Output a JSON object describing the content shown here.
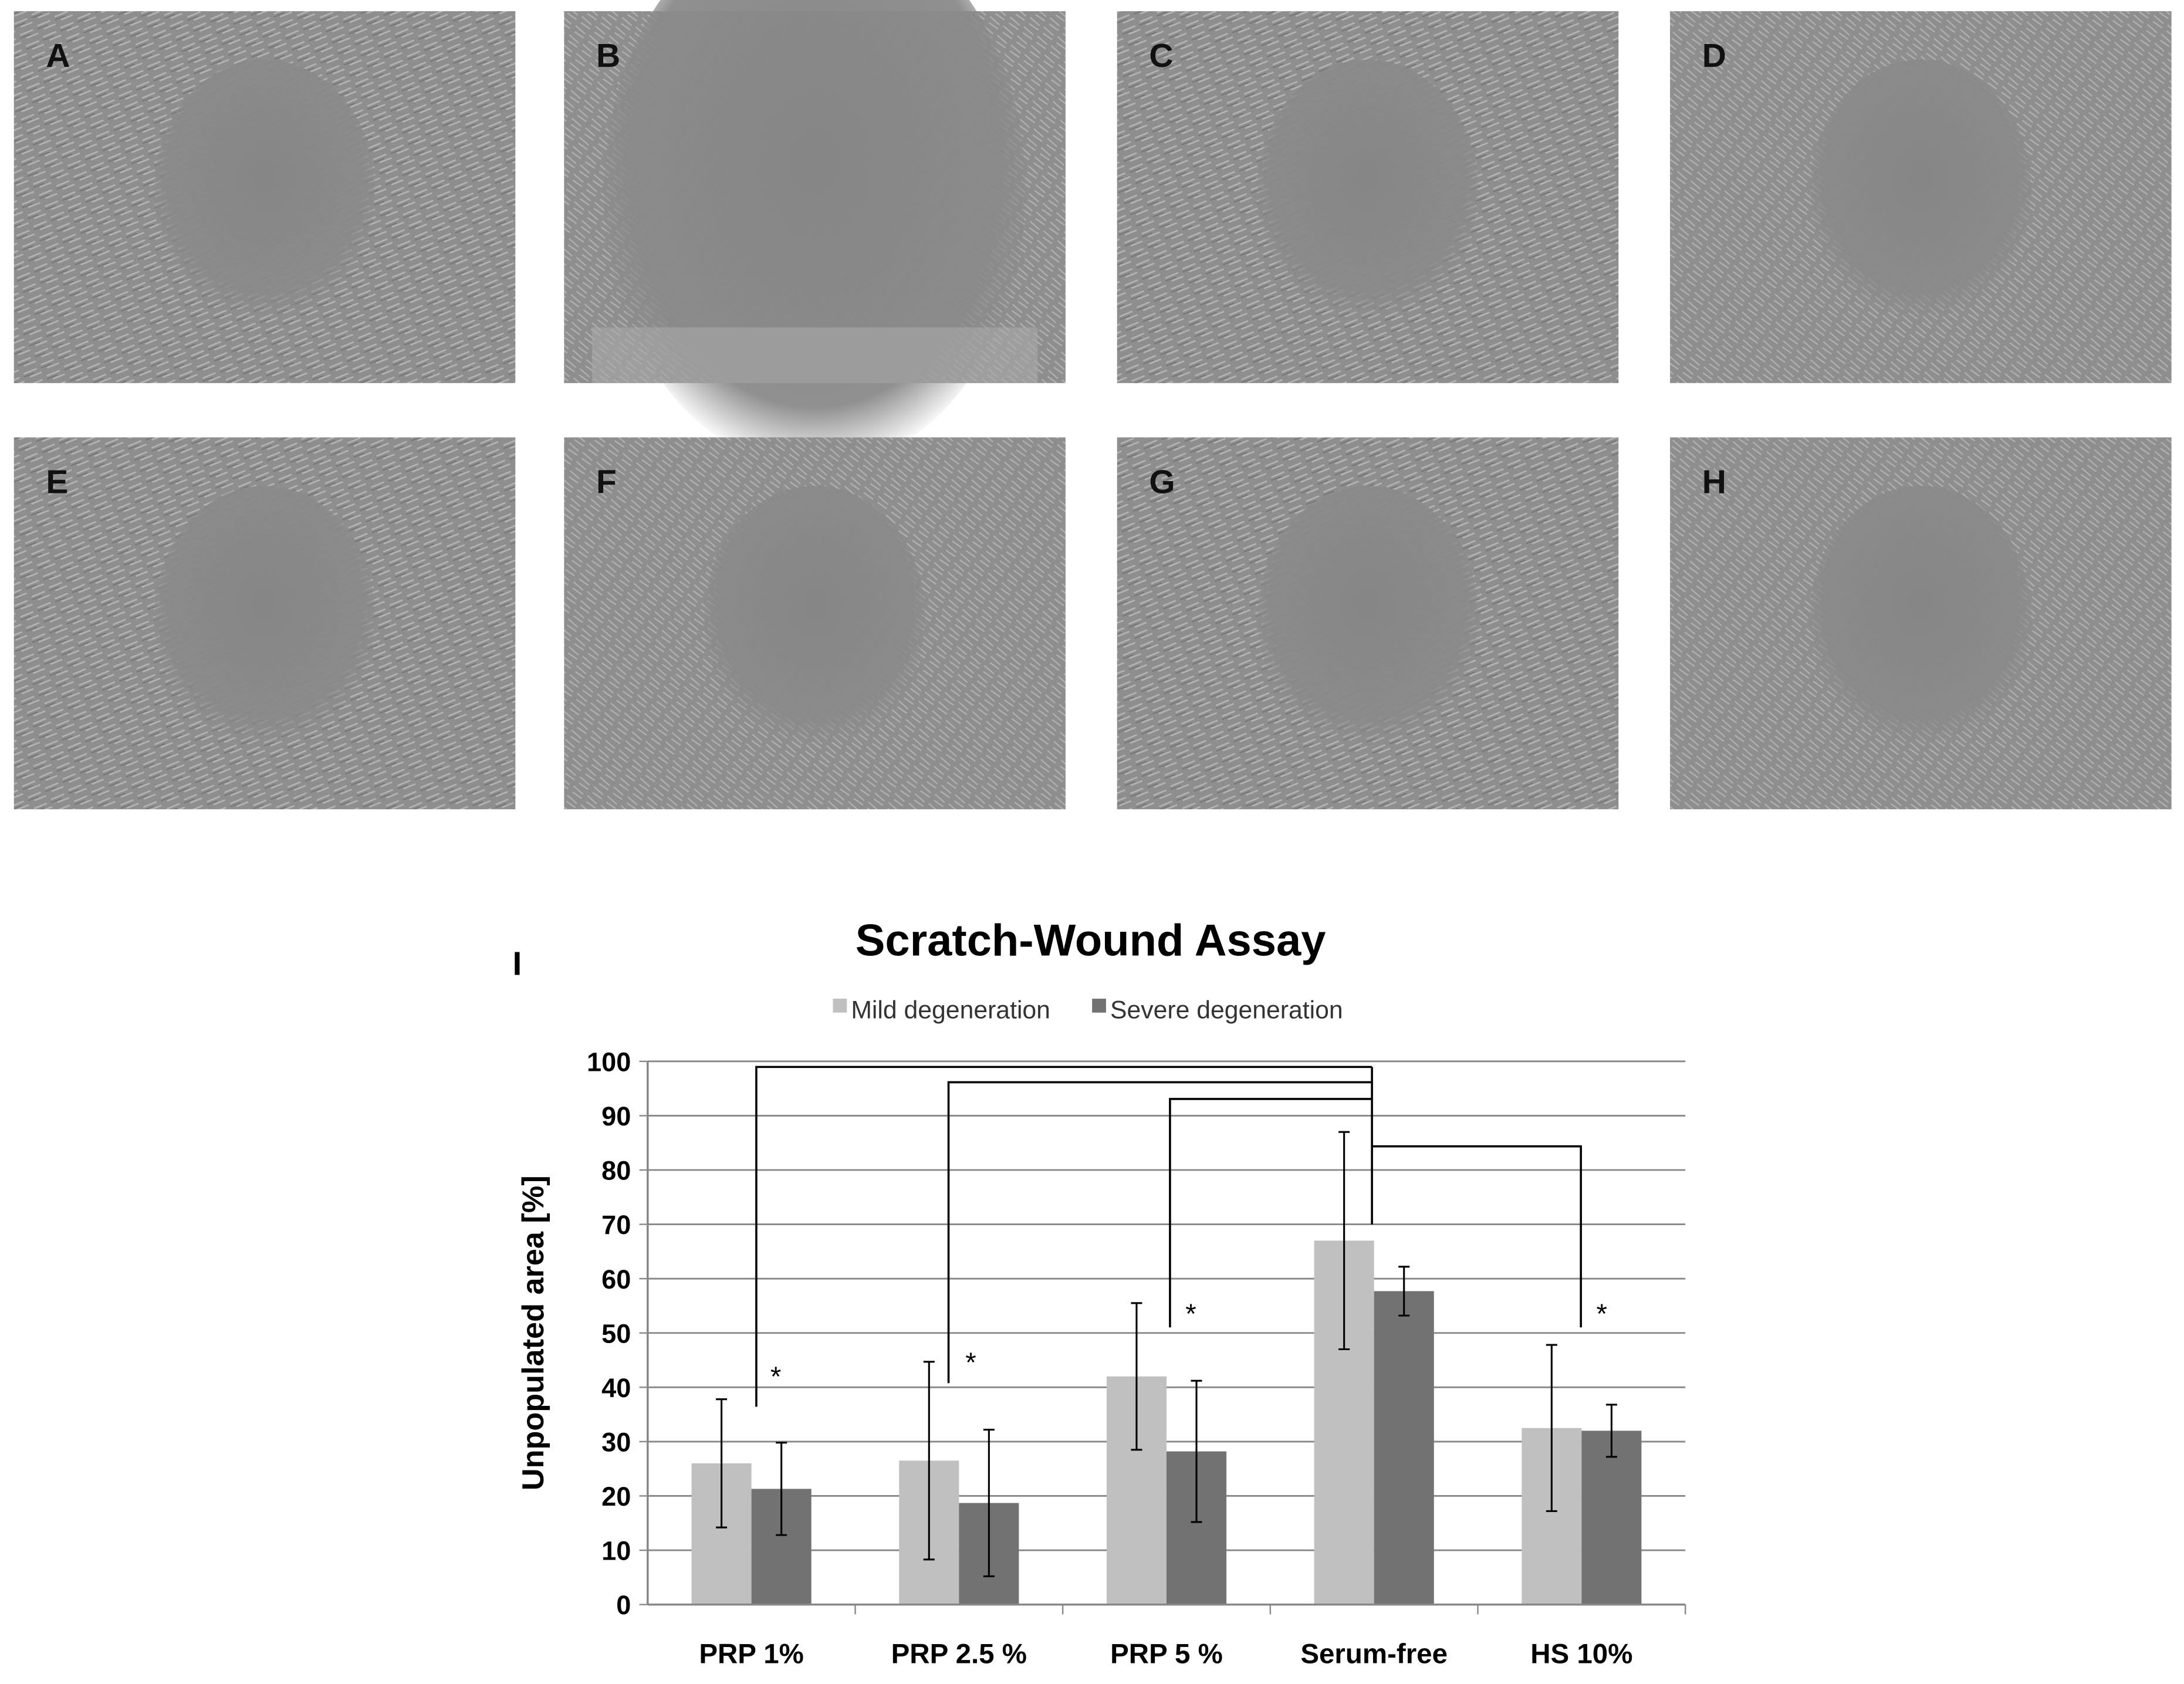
{
  "panels": [
    {
      "label": "A"
    },
    {
      "label": "B"
    },
    {
      "label": "C"
    },
    {
      "label": "D"
    },
    {
      "label": "E"
    },
    {
      "label": "F"
    },
    {
      "label": "G"
    },
    {
      "label": "H"
    }
  ],
  "chart_data": {
    "type": "bar",
    "panel_label": "I",
    "title": "Scratch-Wound Assay",
    "y_label": "Unpopulated area [%]",
    "categories": [
      "PRP 1%",
      "PRP 2.5 %",
      "PRP 5 %",
      "Serum-free",
      "HS 10%"
    ],
    "series": [
      {
        "name": "Mild degeneration",
        "color": "#c0c0c0",
        "values": [
          26,
          26.5,
          42,
          67,
          32.5
        ],
        "errors": [
          11.8,
          18.2,
          13.5,
          20,
          15.3
        ]
      },
      {
        "name": "Severe degeneration",
        "color": "#727272",
        "values": [
          21.3,
          18.7,
          28.2,
          57.7,
          32
        ],
        "errors": [
          8.5,
          13.5,
          13,
          4.5,
          4.8
        ]
      }
    ],
    "ylim": [
      0,
      100
    ],
    "yticks": [
      0,
      10,
      20,
      30,
      40,
      50,
      60,
      70,
      80,
      90,
      100
    ],
    "grid": true,
    "legend": "top",
    "annotations": [
      "*",
      "*",
      "*",
      "*"
    ]
  }
}
